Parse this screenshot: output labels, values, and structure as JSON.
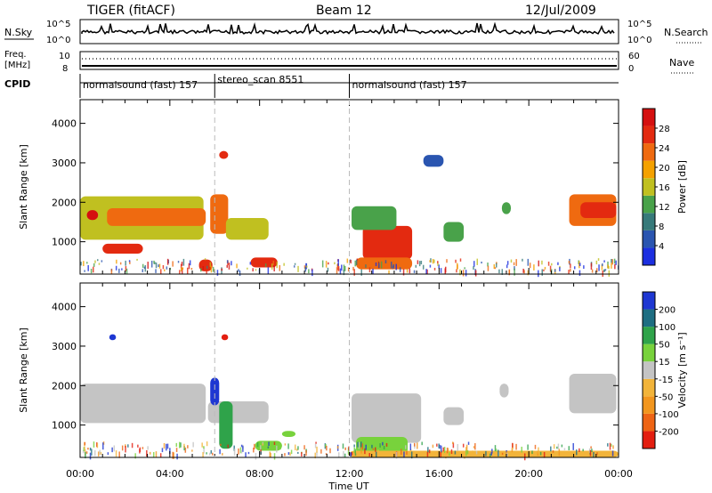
{
  "header": {
    "radar": "TIGER (fitACF)",
    "beam": "Beam 12",
    "date": "12/Jul/2009"
  },
  "panels": {
    "sky": {
      "left_label": "N.Sky",
      "right_label": "N.Search",
      "tick_top": "10^5",
      "tick_bottom": "10^0"
    },
    "freq": {
      "left_label_1": "Freq.",
      "left_label_2": "[MHz]",
      "right_label": "Nave",
      "tick_left_top": "10",
      "tick_left_bottom": "8",
      "tick_right_top": "60",
      "tick_right_bottom": "0"
    },
    "cpid": {
      "label": "CPID",
      "segments": [
        {
          "start_hour": 0,
          "end_hour": 6,
          "text": "normalsound (fast) 157",
          "row": "low"
        },
        {
          "start_hour": 6,
          "end_hour": 12,
          "text": "stereo_scan 8551",
          "row": "high"
        },
        {
          "start_hour": 12,
          "end_hour": 24,
          "text": "normalsound (fast) 157",
          "row": "low"
        }
      ]
    }
  },
  "chart_data": [
    {
      "type": "heatmap",
      "name": "power",
      "ylabel": "Slant Range [km]",
      "ylim": [
        180,
        4600
      ],
      "yticks": [
        1000,
        2000,
        3000,
        4000
      ],
      "colorbar": {
        "label": "Power [dB]",
        "ticks": [
          "4",
          "8",
          "12",
          "16",
          "20",
          "24",
          "28"
        ],
        "colors": [
          "#1c2fe0",
          "#2a55b0",
          "#377a7a",
          "#49a24a",
          "#c0c020",
          "#f4a100",
          "#ef6a10",
          "#e32a10",
          "#d51010"
        ]
      },
      "patches": [
        {
          "x0": 0.0,
          "x1": 3.8,
          "y0": 1250,
          "y1": 1750,
          "c": 7
        },
        {
          "x0": 0.0,
          "x1": 5.5,
          "y0": 1050,
          "y1": 2150,
          "c": 4
        },
        {
          "x0": 1.2,
          "x1": 5.6,
          "y0": 1400,
          "y1": 1850,
          "c": 6
        },
        {
          "x0": 1.0,
          "x1": 2.8,
          "y0": 700,
          "y1": 950,
          "c": 7
        },
        {
          "x0": 5.8,
          "x1": 6.6,
          "y0": 1200,
          "y1": 2200,
          "c": 6
        },
        {
          "x0": 6.5,
          "x1": 8.4,
          "y0": 1050,
          "y1": 1600,
          "c": 4
        },
        {
          "x0": 7.6,
          "x1": 8.8,
          "y0": 350,
          "y1": 600,
          "c": 7
        },
        {
          "x0": 5.3,
          "x1": 5.9,
          "y0": 250,
          "y1": 550,
          "c": 7
        },
        {
          "x0": 12.6,
          "x1": 14.8,
          "y0": 550,
          "y1": 1400,
          "c": 7
        },
        {
          "x0": 12.3,
          "x1": 14.8,
          "y0": 300,
          "y1": 600,
          "c": 6
        },
        {
          "x0": 12.1,
          "x1": 14.1,
          "y0": 1300,
          "y1": 1900,
          "c": 3
        },
        {
          "x0": 16.2,
          "x1": 17.1,
          "y0": 1000,
          "y1": 1500,
          "c": 3
        },
        {
          "x0": 18.8,
          "x1": 19.2,
          "y0": 1700,
          "y1": 2000,
          "c": 3
        },
        {
          "x0": 21.8,
          "x1": 23.9,
          "y0": 1400,
          "y1": 2200,
          "c": 6
        },
        {
          "x0": 22.3,
          "x1": 23.9,
          "y0": 1600,
          "y1": 2000,
          "c": 7
        },
        {
          "x0": 0.3,
          "x1": 0.8,
          "y0": 1550,
          "y1": 1800,
          "c": 8
        },
        {
          "x0": 6.2,
          "x1": 6.6,
          "y0": 3100,
          "y1": 3300,
          "c": 7
        },
        {
          "x0": 15.3,
          "x1": 16.2,
          "y0": 2900,
          "y1": 3200,
          "c": 1
        }
      ],
      "groundscatter": false
    },
    {
      "type": "heatmap",
      "name": "velocity",
      "ylabel": "Slant Range [km]",
      "xlabel": "Time UT",
      "xlim": [
        0,
        24
      ],
      "ylim": [
        180,
        4600
      ],
      "xticks": [
        "00:00",
        "04:00",
        "08:00",
        "12:00",
        "16:00",
        "20:00",
        "00:00"
      ],
      "yticks": [
        1000,
        2000,
        3000,
        4000
      ],
      "colorbar": {
        "label": "Velocity [m s⁻¹]",
        "ticks": [
          "200",
          "100",
          "50",
          "15",
          "-15",
          "-50",
          "-100",
          "-200"
        ],
        "colors": [
          "#1e37d2",
          "#1e6e82",
          "#2fa34a",
          "#78d23c",
          "#c4c4c4",
          "#f2b43a",
          "#f2961e",
          "#ee6414",
          "#e31e10"
        ]
      },
      "patches": [
        {
          "x0": 0.0,
          "x1": 5.6,
          "y0": 1050,
          "y1": 2050,
          "c": 4
        },
        {
          "x0": 5.7,
          "x1": 8.4,
          "y0": 1050,
          "y1": 1600,
          "c": 4
        },
        {
          "x0": 6.2,
          "x1": 6.8,
          "y0": 400,
          "y1": 1600,
          "c": 2
        },
        {
          "x0": 5.8,
          "x1": 6.2,
          "y0": 1500,
          "y1": 2200,
          "c": 0
        },
        {
          "x0": 7.8,
          "x1": 9.0,
          "y0": 350,
          "y1": 600,
          "c": 3
        },
        {
          "x0": 9.0,
          "x1": 9.6,
          "y0": 700,
          "y1": 850,
          "c": 3
        },
        {
          "x0": 12.1,
          "x1": 15.2,
          "y0": 550,
          "y1": 1800,
          "c": 4
        },
        {
          "x0": 12.3,
          "x1": 14.6,
          "y0": 250,
          "y1": 700,
          "c": 3
        },
        {
          "x0": 16.2,
          "x1": 17.1,
          "y0": 1000,
          "y1": 1450,
          "c": 4
        },
        {
          "x0": 18.7,
          "x1": 19.1,
          "y0": 1700,
          "y1": 2050,
          "c": 4
        },
        {
          "x0": 21.8,
          "x1": 23.9,
          "y0": 1300,
          "y1": 2300,
          "c": 4
        },
        {
          "x0": 12.0,
          "x1": 24.0,
          "y0": 180,
          "y1": 350,
          "c": 5
        },
        {
          "x0": 6.3,
          "x1": 6.6,
          "y0": 3150,
          "y1": 3300,
          "c": 8
        },
        {
          "x0": 1.3,
          "x1": 1.6,
          "y0": 3150,
          "y1": 3300,
          "c": 0
        }
      ],
      "groundscatter": true
    }
  ]
}
